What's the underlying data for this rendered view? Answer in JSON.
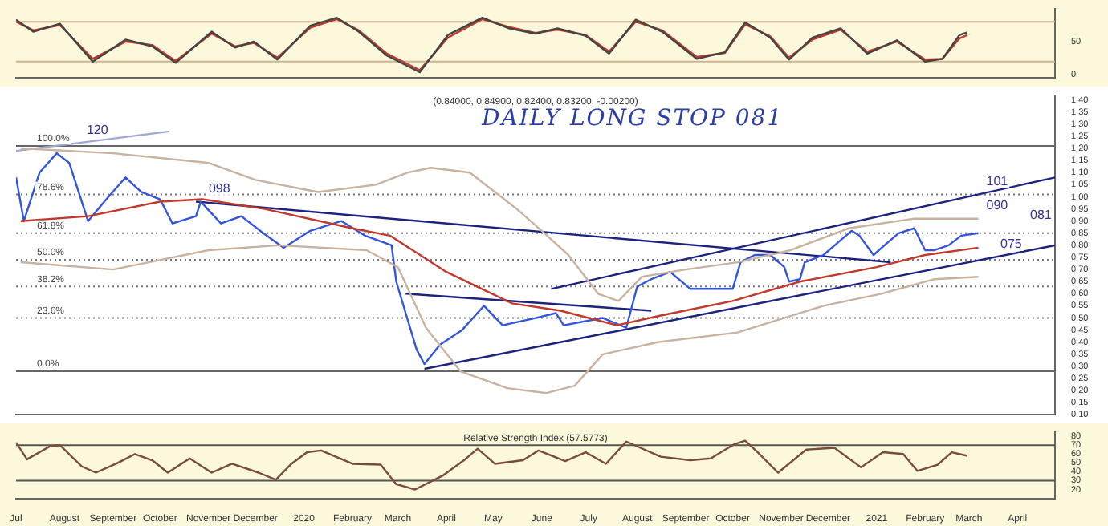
{
  "chart_data": [
    {
      "type": "line",
      "xlim": [
        "2019-07-01",
        "2021-04-25"
      ],
      "ylim": [
        -5,
        100
      ],
      "yticks": [
        0,
        50
      ],
      "tick_labels": "y",
      "grid": false,
      "legend": false,
      "marker": "none",
      "line_style": "solid",
      "x": [
        "2019-07-01",
        "2019-07-12",
        "2019-07-29",
        "2019-08-19",
        "2019-09-09",
        "2019-09-26",
        "2019-10-11",
        "2019-11-03",
        "2019-11-18",
        "2019-11-30",
        "2019-12-15",
        "2020-01-05",
        "2020-01-22",
        "2020-02-05",
        "2020-02-23",
        "2020-03-15",
        "2020-04-02",
        "2020-04-24",
        "2020-05-11",
        "2020-05-28",
        "2020-06-11",
        "2020-06-29",
        "2020-07-14",
        "2020-07-31",
        "2020-08-17",
        "2020-09-08",
        "2020-09-26",
        "2020-10-09",
        "2020-10-25",
        "2020-11-06",
        "2020-11-21",
        "2020-12-09",
        "2020-12-26",
        "2021-01-14",
        "2021-02-01",
        "2021-02-12",
        "2021-02-23",
        "2021-02-28"
      ],
      "series": [
        {
          "color": "#444444",
          "values": [
            83,
            65,
            77,
            20,
            53,
            43,
            18,
            65,
            41,
            50,
            23,
            74,
            86,
            65,
            29,
            4,
            60,
            86,
            70,
            62,
            70,
            59,
            32,
            83,
            65,
            24,
            34,
            79,
            56,
            23,
            56,
            70,
            32,
            52,
            20,
            24,
            60,
            64
          ]
        },
        {
          "color": "#c0392b",
          "values": [
            80,
            67,
            75,
            24,
            50,
            45,
            21,
            62,
            43,
            48,
            26,
            71,
            84,
            67,
            32,
            7,
            56,
            84,
            72,
            63,
            68,
            60,
            35,
            80,
            67,
            27,
            33,
            76,
            58,
            26,
            53,
            68,
            35,
            50,
            23,
            24,
            55,
            60
          ]
        }
      ],
      "ref_lines": [
        {
          "axis": "y",
          "value": 80,
          "color": "#d2b48c",
          "line_style": "solid"
        },
        {
          "axis": "y",
          "value": 20,
          "color": "#d2b48c",
          "line_style": "solid"
        }
      ]
    },
    {
      "type": "line",
      "title": "DAILY LONG STOP 081",
      "xlim": [
        "2019-07-01",
        "2021-04-25"
      ],
      "ylim": [
        0.1,
        1.42
      ],
      "yticks": [
        {
          "value": 0.1,
          "label": "0.10"
        },
        {
          "value": 0.15,
          "label": "0.15"
        },
        {
          "value": 0.2,
          "label": "0.20"
        },
        {
          "value": 0.25,
          "label": "0.25"
        },
        {
          "value": 0.3,
          "label": "0.30"
        },
        {
          "value": 0.35,
          "label": "0.35"
        },
        {
          "value": 0.4,
          "label": "0.40"
        },
        {
          "value": 0.45,
          "label": "0.45"
        },
        {
          "value": 0.5,
          "label": "0.50"
        },
        {
          "value": 0.55,
          "label": "0.55"
        },
        {
          "value": 0.6,
          "label": "0.60"
        },
        {
          "value": 0.65,
          "label": "0.65"
        },
        {
          "value": 0.7,
          "label": "0.70"
        },
        {
          "value": 0.75,
          "label": "0.75"
        },
        {
          "value": 0.8,
          "label": "0.80"
        },
        {
          "value": 0.85,
          "label": "0.85"
        },
        {
          "value": 0.9,
          "label": "0.90"
        },
        {
          "value": 0.95,
          "label": "0.95"
        },
        {
          "value": 1.0,
          "label": "1.00"
        },
        {
          "value": 1.05,
          "label": "1.05"
        },
        {
          "value": 1.1,
          "label": "1.10"
        },
        {
          "value": 1.15,
          "label": "1.15"
        },
        {
          "value": 1.2,
          "label": "1.20"
        },
        {
          "value": 1.25,
          "label": "1.25"
        },
        {
          "value": 1.3,
          "label": "1.30"
        },
        {
          "value": 1.35,
          "label": "1.35"
        },
        {
          "value": 1.4,
          "label": "1.40"
        }
      ],
      "tick_labels": "y",
      "grid": false,
      "legend": false,
      "marker": "none",
      "line_style": "solid",
      "series": [
        {
          "color": "#c9b29f",
          "x": [
            "2019-07-04",
            "2019-09-01",
            "2019-11-01",
            "2019-12-01",
            "2020-01-10",
            "2020-02-16",
            "2020-03-07",
            "2020-03-22",
            "2020-04-16",
            "2020-05-16",
            "2020-06-01",
            "2020-06-18",
            "2020-07-07",
            "2020-07-20",
            "2020-08-04",
            "2020-09-01",
            "2020-10-04",
            "2020-11-07",
            "2020-12-14",
            "2021-01-25",
            "2021-03-07"
          ],
          "values": [
            1.2,
            1.18,
            1.14,
            1.07,
            1.02,
            1.05,
            1.1,
            1.12,
            1.1,
            0.95,
            0.86,
            0.76,
            0.6,
            0.57,
            0.67,
            0.7,
            0.73,
            0.78,
            0.87,
            0.91,
            0.91
          ]
        },
        {
          "color": "#c9b29f",
          "x": [
            "2019-07-04",
            "2019-09-01",
            "2019-11-01",
            "2019-12-16",
            "2020-02-10",
            "2020-03-01",
            "2020-03-19",
            "2020-04-10",
            "2020-05-10",
            "2020-06-04",
            "2020-06-22",
            "2020-07-10",
            "2020-08-14",
            "2020-10-04",
            "2020-11-28",
            "2021-01-04",
            "2021-02-07",
            "2021-03-07"
          ],
          "values": [
            0.73,
            0.7,
            0.78,
            0.8,
            0.78,
            0.71,
            0.46,
            0.28,
            0.21,
            0.19,
            0.22,
            0.35,
            0.4,
            0.44,
            0.55,
            0.6,
            0.66,
            0.67
          ]
        },
        {
          "color": "#c0392b",
          "x": [
            "2019-07-04",
            "2019-08-16",
            "2019-10-01",
            "2019-10-28",
            "2019-12-07",
            "2020-02-01",
            "2020-02-25",
            "2020-04-01",
            "2020-05-13",
            "2020-06-13",
            "2020-07-19",
            "2020-08-16",
            "2020-10-01",
            "2020-11-13",
            "2021-01-01",
            "2021-02-01",
            "2021-03-07"
          ],
          "values": [
            0.9,
            0.92,
            0.98,
            0.99,
            0.95,
            0.87,
            0.84,
            0.69,
            0.56,
            0.53,
            0.47,
            0.51,
            0.57,
            0.65,
            0.71,
            0.76,
            0.79
          ]
        },
        {
          "color": "#3355dd",
          "x": [
            "2019-07-01",
            "2019-07-06",
            "2019-07-16",
            "2019-07-27",
            "2019-08-04",
            "2019-08-16",
            "2019-08-29",
            "2019-09-09",
            "2019-09-19",
            "2019-10-01",
            "2019-10-09",
            "2019-10-24",
            "2019-10-27",
            "2019-11-09",
            "2019-11-22",
            "2019-12-06",
            "2019-12-19",
            "2020-01-05",
            "2020-01-25",
            "2020-02-09",
            "2020-02-26",
            "2020-02-29",
            "2020-03-06",
            "2020-03-13",
            "2020-03-18",
            "2020-03-28",
            "2020-04-11",
            "2020-04-25",
            "2020-05-07",
            "2020-05-28",
            "2020-06-10",
            "2020-06-15",
            "2020-07-10",
            "2020-07-25",
            "2020-08-01",
            "2020-08-10",
            "2020-08-22",
            "2020-09-04",
            "2020-09-18",
            "2020-10-01",
            "2020-10-06",
            "2020-10-15",
            "2020-10-25",
            "2020-11-03",
            "2020-11-06",
            "2020-11-13",
            "2020-11-16",
            "2020-11-28",
            "2020-12-07",
            "2020-12-16",
            "2020-12-21",
            "2020-12-30",
            "2021-01-06",
            "2021-01-15",
            "2021-01-25",
            "2021-02-01",
            "2021-02-07",
            "2021-02-16",
            "2021-02-24",
            "2021-03-07"
          ],
          "values": [
            1.08,
            0.9,
            1.1,
            1.18,
            1.14,
            0.9,
            1.0,
            1.08,
            1.02,
            0.99,
            0.89,
            0.92,
            0.98,
            0.89,
            0.92,
            0.85,
            0.79,
            0.86,
            0.9,
            0.84,
            0.8,
            0.65,
            0.52,
            0.37,
            0.31,
            0.39,
            0.45,
            0.55,
            0.47,
            0.5,
            0.52,
            0.47,
            0.5,
            0.46,
            0.63,
            0.66,
            0.69,
            0.62,
            0.62,
            0.62,
            0.73,
            0.76,
            0.76,
            0.71,
            0.65,
            0.66,
            0.73,
            0.76,
            0.81,
            0.86,
            0.84,
            0.76,
            0.8,
            0.85,
            0.87,
            0.78,
            0.78,
            0.8,
            0.84,
            0.85
          ]
        },
        {
          "type": "line",
          "color": "#a0a8d8",
          "x": [
            "2019-07-01",
            "2019-10-07"
          ],
          "values": [
            1.19,
            1.27
          ]
        },
        {
          "type": "line",
          "color": "#1a237e",
          "x": [
            "2019-10-24",
            "2021-01-10"
          ],
          "values": [
            0.98,
            0.73
          ]
        },
        {
          "type": "line",
          "color": "#1a237e",
          "x": [
            "2020-03-06",
            "2020-08-10"
          ],
          "values": [
            0.6,
            0.53
          ]
        },
        {
          "type": "line",
          "color": "#1a237e",
          "x": [
            "2020-03-18",
            "2021-04-25"
          ],
          "values": [
            0.29,
            0.8
          ]
        },
        {
          "type": "line",
          "color": "#1a237e",
          "x": [
            "2020-06-07",
            "2021-04-25"
          ],
          "values": [
            0.62,
            1.08
          ]
        }
      ],
      "ref_lines": [
        {
          "axis": "y",
          "value": 1.21,
          "color": "#666666",
          "line_style": "solid"
        },
        {
          "axis": "y",
          "value": 1.01,
          "color": "#777777",
          "line_style": "dotted"
        },
        {
          "axis": "y",
          "value": 0.85,
          "color": "#777777",
          "line_style": "dotted"
        },
        {
          "axis": "y",
          "value": 0.74,
          "color": "#777777",
          "line_style": "dotted"
        },
        {
          "axis": "y",
          "value": 0.63,
          "color": "#777777",
          "line_style": "dotted"
        },
        {
          "axis": "y",
          "value": 0.5,
          "color": "#777777",
          "line_style": "dotted"
        },
        {
          "axis": "y",
          "value": 0.28,
          "color": "#666666",
          "line_style": "solid"
        }
      ],
      "annotations": [
        "(0.84000, 0.84900, 0.82400, 0.83200, -0.00200)",
        {
          "text": "100.0%",
          "x": "2019-07-01",
          "y": 1.21
        },
        {
          "text": "78.6%",
          "x": "2019-07-01",
          "y": 1.01
        },
        {
          "text": "61.8%",
          "x": "2019-07-01",
          "y": 0.85
        },
        {
          "text": "50.0%",
          "x": "2019-07-01",
          "y": 0.74
        },
        {
          "text": "38.2%",
          "x": "2019-07-01",
          "y": 0.63
        },
        {
          "text": "23.6%",
          "x": "2019-07-01",
          "y": 0.5
        },
        {
          "text": "0.0%",
          "x": "2019-07-01",
          "y": 0.28
        },
        {
          "text": "120",
          "x": "2019-08-10",
          "y": 1.22
        },
        {
          "text": "098",
          "x": "2019-10-27",
          "y": 0.98
        },
        {
          "text": "101",
          "x": "2021-03-07",
          "y": 1.01
        },
        {
          "text": "090",
          "x": "2021-03-07",
          "y": 0.91
        },
        {
          "text": "081",
          "x": "2021-04-04",
          "y": 0.87
        },
        {
          "text": "075",
          "x": "2021-03-16",
          "y": 0.75
        }
      ]
    },
    {
      "type": "line",
      "xlim": [
        "2019-07-01",
        "2021-04-25"
      ],
      "ylim": [
        10,
        85
      ],
      "yticks": [
        20,
        30,
        40,
        50,
        60,
        70,
        80
      ],
      "grid": false,
      "legend": false,
      "marker": "none",
      "line_style": "solid",
      "xticks": [
        {
          "value": "2019-07-01",
          "label": "Jul"
        },
        {
          "value": "2019-08-01",
          "label": "August"
        },
        {
          "value": "2019-09-01",
          "label": "September"
        },
        {
          "value": "2019-10-01",
          "label": "October"
        },
        {
          "value": "2019-11-01",
          "label": "November"
        },
        {
          "value": "2019-12-01",
          "label": "December"
        },
        {
          "value": "2020-01-01",
          "label": "2020"
        },
        {
          "value": "2020-02-01",
          "label": "February"
        },
        {
          "value": "2020-03-01",
          "label": "March"
        },
        {
          "value": "2020-04-01",
          "label": "April"
        },
        {
          "value": "2020-05-01",
          "label": "May"
        },
        {
          "value": "2020-06-01",
          "label": "June"
        },
        {
          "value": "2020-07-01",
          "label": "July"
        },
        {
          "value": "2020-08-01",
          "label": "August"
        },
        {
          "value": "2020-09-01",
          "label": "September"
        },
        {
          "value": "2020-10-01",
          "label": "October"
        },
        {
          "value": "2020-11-01",
          "label": "November"
        },
        {
          "value": "2020-12-01",
          "label": "December"
        },
        {
          "value": "2021-01-01",
          "label": "2021"
        },
        {
          "value": "2021-02-01",
          "label": "February"
        },
        {
          "value": "2021-03-01",
          "label": "March"
        },
        {
          "value": "2021-04-01",
          "label": "April"
        }
      ],
      "series": [
        {
          "color": "#7a4a3a",
          "x": [
            "2019-07-01",
            "2019-07-08",
            "2019-07-23",
            "2019-07-29",
            "2019-08-12",
            "2019-08-21",
            "2019-09-04",
            "2019-09-15",
            "2019-09-26",
            "2019-10-06",
            "2019-10-20",
            "2019-11-03",
            "2019-11-16",
            "2019-12-03",
            "2019-12-14",
            "2019-12-24",
            "2020-01-03",
            "2020-01-12",
            "2020-02-01",
            "2020-02-19",
            "2020-02-29",
            "2020-03-12",
            "2020-03-30",
            "2020-04-13",
            "2020-04-21",
            "2020-05-02",
            "2020-05-20",
            "2020-05-30",
            "2020-06-16",
            "2020-06-29",
            "2020-07-12",
            "2020-07-25",
            "2020-08-03",
            "2020-08-16",
            "2020-09-04",
            "2020-09-17",
            "2020-10-02",
            "2020-10-09",
            "2020-10-17",
            "2020-10-30",
            "2020-11-17",
            "2020-12-05",
            "2020-12-22",
            "2021-01-05",
            "2021-01-18",
            "2021-01-27",
            "2021-02-09",
            "2021-02-18",
            "2021-02-28"
          ],
          "values": [
            73,
            54,
            69,
            70,
            46,
            39,
            50,
            60,
            53,
            39,
            55,
            39,
            49,
            39,
            31,
            49,
            62,
            64,
            49,
            48,
            26,
            20,
            36,
            54,
            66,
            49,
            53,
            64,
            52,
            62,
            49,
            74,
            67,
            57,
            53,
            55,
            71,
            75,
            62,
            39,
            65,
            67,
            45,
            62,
            60,
            41,
            48,
            62,
            58
          ]
        }
      ],
      "ref_lines": [
        {
          "axis": "y",
          "value": 70,
          "color": "#555555",
          "line_style": "solid"
        },
        {
          "axis": "y",
          "value": 30,
          "color": "#555555",
          "line_style": "solid"
        }
      ],
      "annotations": [
        "Relative Strength Index (57.5773)"
      ]
    }
  ]
}
